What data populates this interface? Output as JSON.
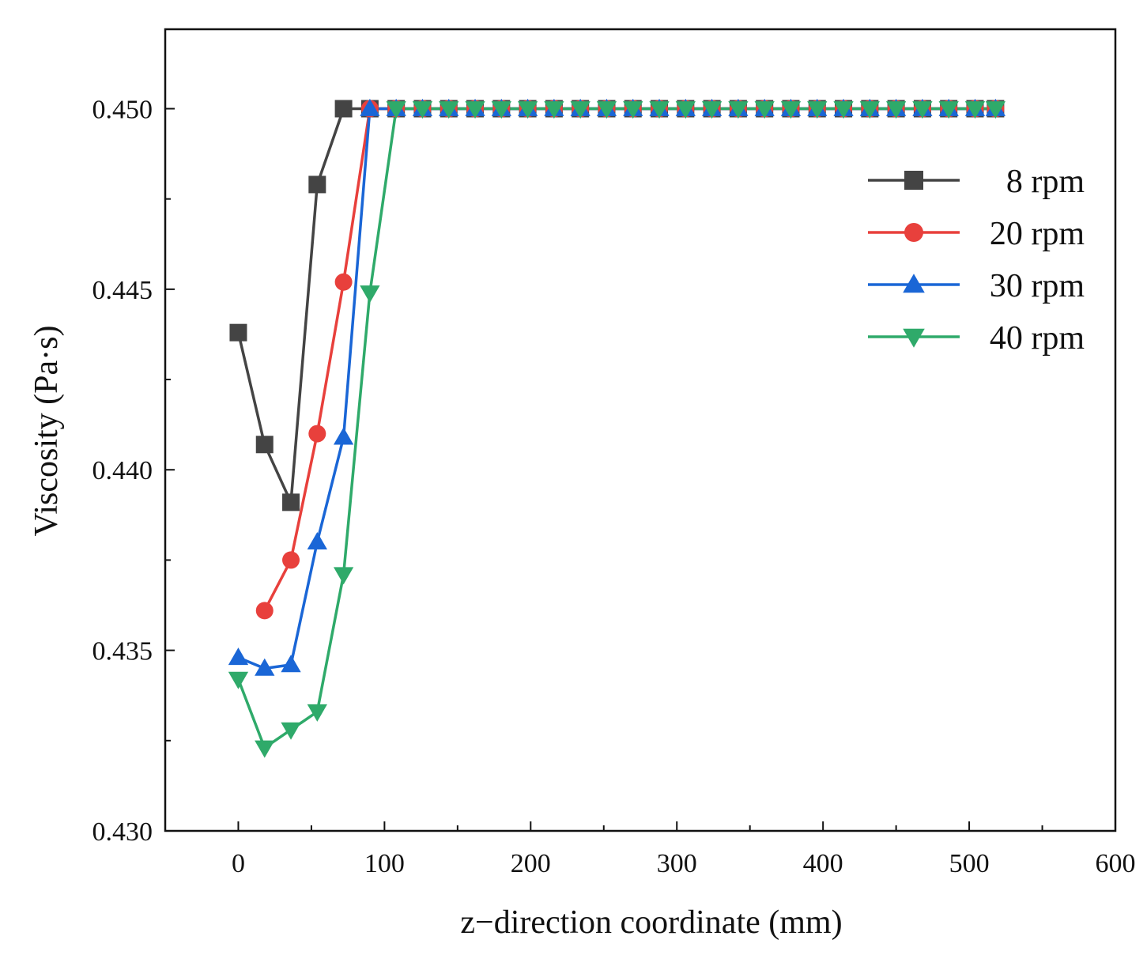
{
  "chart_data": {
    "type": "line",
    "title": "",
    "xlabel": "z−direction coordinate (mm)",
    "ylabel": "Viscosity (Pa·s)",
    "xlim": [
      -50,
      600
    ],
    "ylim": [
      0.43,
      0.4522
    ],
    "xticks": [
      0,
      100,
      200,
      300,
      400,
      500,
      600
    ],
    "xtick_labels": [
      "0",
      "100",
      "200",
      "300",
      "400",
      "500",
      "600"
    ],
    "yticks": [
      0.43,
      0.435,
      0.44,
      0.445,
      0.45
    ],
    "ytick_labels": [
      "0.430",
      "0.435",
      "0.440",
      "0.445",
      "0.450"
    ],
    "grid": false,
    "legend_position": "top-right",
    "series": [
      {
        "name": "8 rpm",
        "color": "#444444",
        "marker": "square",
        "x": [
          0,
          18,
          36,
          54,
          72,
          90,
          108,
          126,
          144,
          162,
          180,
          198,
          216,
          234,
          252,
          270,
          288,
          306,
          324,
          342,
          360,
          378,
          396,
          414,
          432,
          450,
          468,
          486,
          504,
          518
        ],
        "y": [
          0.4438,
          0.4407,
          0.4391,
          0.4479,
          0.45,
          0.45,
          0.45,
          0.45,
          0.45,
          0.45,
          0.45,
          0.45,
          0.45,
          0.45,
          0.45,
          0.45,
          0.45,
          0.45,
          0.45,
          0.45,
          0.45,
          0.45,
          0.45,
          0.45,
          0.45,
          0.45,
          0.45,
          0.45,
          0.45,
          0.45
        ]
      },
      {
        "name": "20 rpm",
        "color": "#e8403c",
        "marker": "circle",
        "x": [
          18,
          36,
          54,
          72,
          90,
          108,
          126,
          144,
          162,
          180,
          198,
          216,
          234,
          252,
          270,
          288,
          306,
          324,
          342,
          360,
          378,
          396,
          414,
          432,
          450,
          468,
          486,
          504,
          518
        ],
        "y": [
          0.4361,
          0.4375,
          0.441,
          0.4452,
          0.45,
          0.45,
          0.45,
          0.45,
          0.45,
          0.45,
          0.45,
          0.45,
          0.45,
          0.45,
          0.45,
          0.45,
          0.45,
          0.45,
          0.45,
          0.45,
          0.45,
          0.45,
          0.45,
          0.45,
          0.45,
          0.45,
          0.45,
          0.45,
          0.45
        ]
      },
      {
        "name": "30 rpm",
        "color": "#1a66d6",
        "marker": "triangle-up",
        "x": [
          0,
          18,
          36,
          54,
          72,
          90,
          108,
          126,
          144,
          162,
          180,
          198,
          216,
          234,
          252,
          270,
          288,
          306,
          324,
          342,
          360,
          378,
          396,
          414,
          432,
          450,
          468,
          486,
          504,
          518
        ],
        "y": [
          0.4348,
          0.4345,
          0.4346,
          0.438,
          0.4409,
          0.45,
          0.45,
          0.45,
          0.45,
          0.45,
          0.45,
          0.45,
          0.45,
          0.45,
          0.45,
          0.45,
          0.45,
          0.45,
          0.45,
          0.45,
          0.45,
          0.45,
          0.45,
          0.45,
          0.45,
          0.45,
          0.45,
          0.45,
          0.45,
          0.45
        ]
      },
      {
        "name": "40 rpm",
        "color": "#2faa6a",
        "marker": "triangle-down",
        "x": [
          0,
          18,
          36,
          54,
          72,
          90,
          108,
          126,
          144,
          162,
          180,
          198,
          216,
          234,
          252,
          270,
          288,
          306,
          324,
          342,
          360,
          378,
          396,
          414,
          432,
          450,
          468,
          486,
          504,
          518
        ],
        "y": [
          0.4342,
          0.4323,
          0.4328,
          0.4333,
          0.4371,
          0.4449,
          0.45,
          0.45,
          0.45,
          0.45,
          0.45,
          0.45,
          0.45,
          0.45,
          0.45,
          0.45,
          0.45,
          0.45,
          0.45,
          0.45,
          0.45,
          0.45,
          0.45,
          0.45,
          0.45,
          0.45,
          0.45,
          0.45,
          0.45,
          0.45
        ]
      }
    ]
  }
}
